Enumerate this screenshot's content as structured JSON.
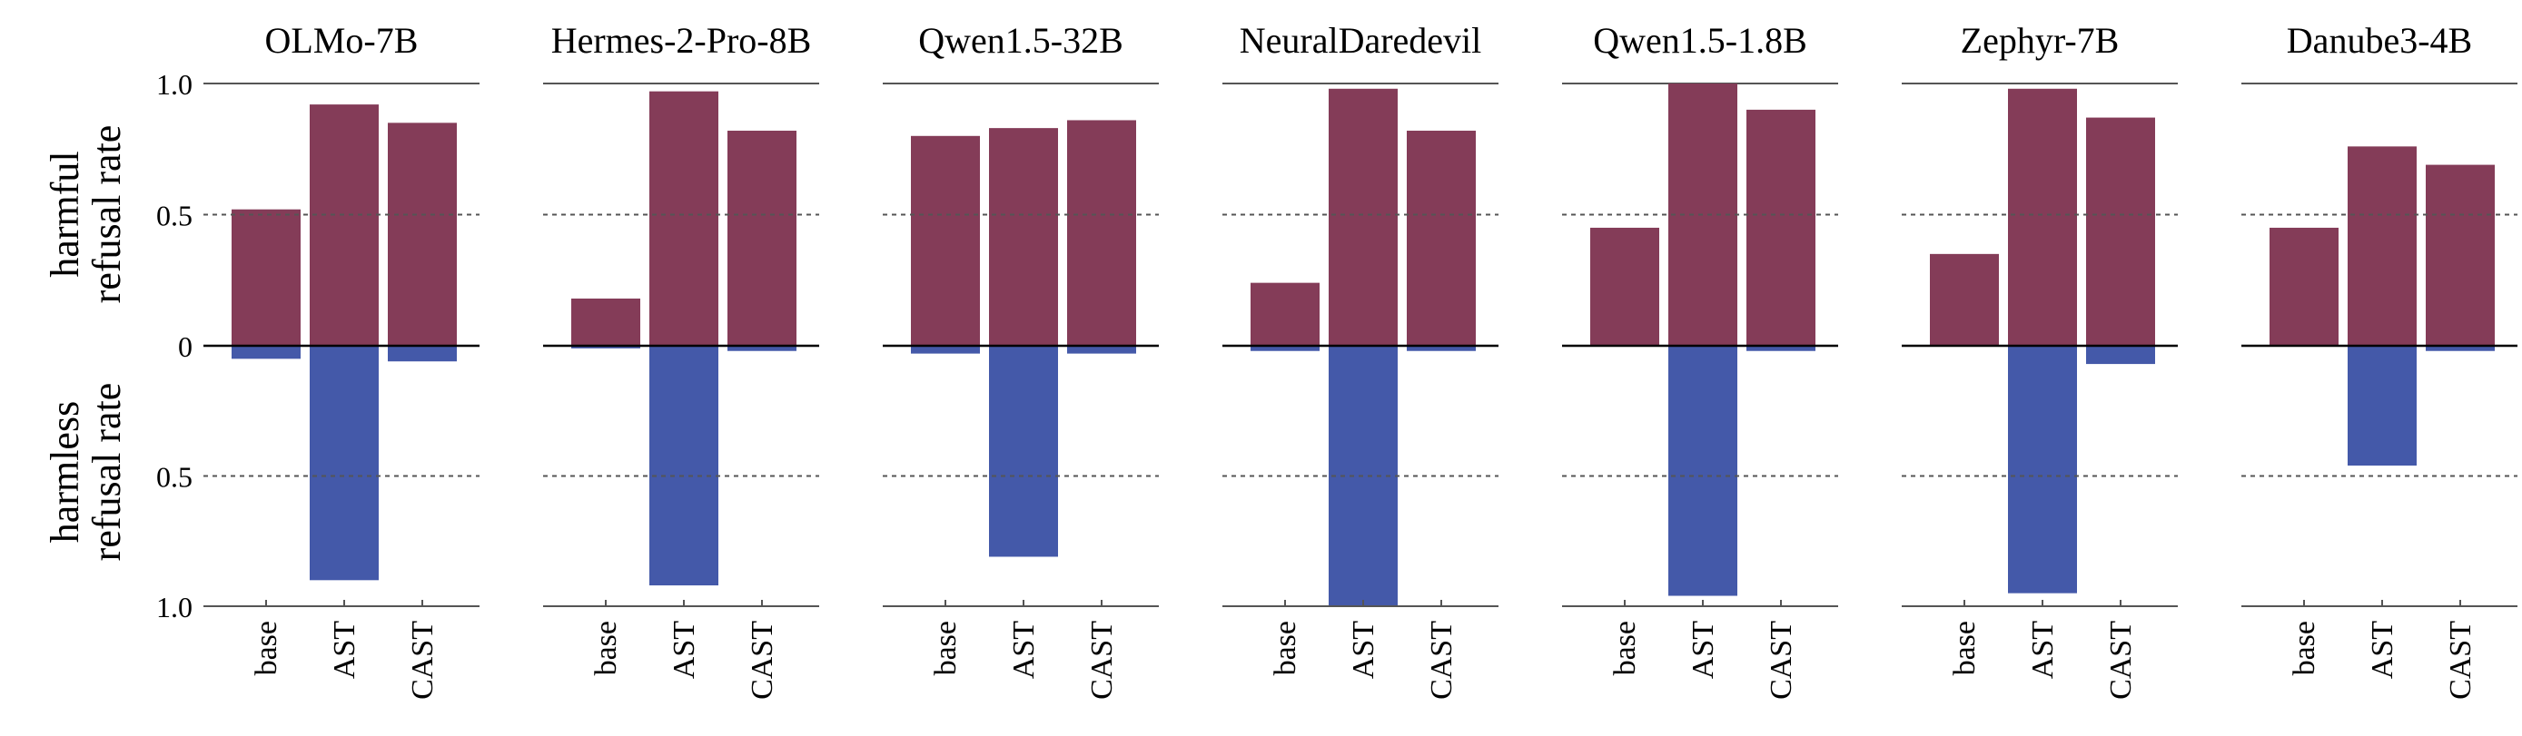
{
  "chart_data": {
    "type": "bar",
    "layout": "small-multiples, mirrored bars",
    "categories": [
      "base",
      "AST",
      "CAST"
    ],
    "ylabel_top": [
      "harmful",
      "refusal rate"
    ],
    "ylabel_bottom": [
      "harmless",
      "refusal rate"
    ],
    "yticks_top": [
      "1.0",
      "0.5",
      "0"
    ],
    "yticks_bottom": [
      "0.5",
      "1.0"
    ],
    "ylim_top": [
      0,
      1.0
    ],
    "ylim_bottom": [
      0,
      1.0
    ],
    "dashed_reference": [
      0.5
    ],
    "colors": {
      "harmful": "#843C58",
      "harmless": "#4459A9"
    },
    "panels": [
      {
        "title": "OLMo-7B",
        "harmful": [
          0.52,
          0.92,
          0.85
        ],
        "harmless": [
          0.05,
          0.9,
          0.06
        ]
      },
      {
        "title": "Hermes-2-Pro-8B",
        "harmful": [
          0.18,
          0.97,
          0.82
        ],
        "harmless": [
          0.01,
          0.92,
          0.02
        ]
      },
      {
        "title": "Qwen1.5-32B",
        "harmful": [
          0.8,
          0.83,
          0.86
        ],
        "harmless": [
          0.03,
          0.81,
          0.03
        ]
      },
      {
        "title": "NeuralDaredevil",
        "harmful": [
          0.24,
          0.98,
          0.82
        ],
        "harmless": [
          0.02,
          1.0,
          0.02
        ]
      },
      {
        "title": "Qwen1.5-1.8B",
        "harmful": [
          0.45,
          1.0,
          0.9
        ],
        "harmless": [
          0.0,
          0.96,
          0.02
        ]
      },
      {
        "title": "Zephyr-7B",
        "harmful": [
          0.35,
          0.98,
          0.87
        ],
        "harmless": [
          0.0,
          0.95,
          0.07
        ]
      },
      {
        "title": "Danube3-4B",
        "harmful": [
          0.45,
          0.76,
          0.69
        ],
        "harmless": [
          0.0,
          0.46,
          0.02
        ]
      }
    ]
  }
}
